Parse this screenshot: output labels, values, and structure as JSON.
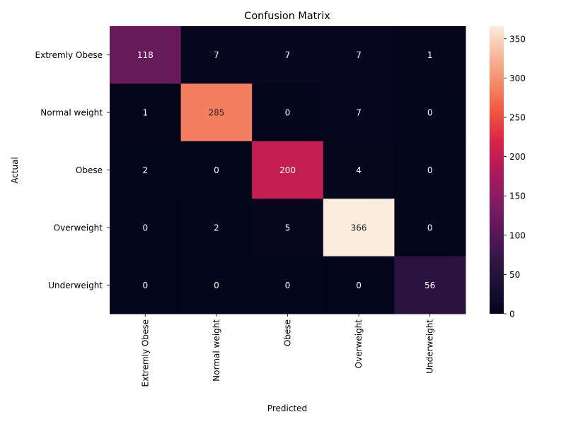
{
  "chart_data": {
    "type": "heatmap",
    "title": "Confusion Matrix",
    "xlabel": "Predicted",
    "ylabel": "Actual",
    "x_categories": [
      "Extremly Obese",
      "Normal weight",
      "Obese",
      "Overweight",
      "Underweight"
    ],
    "y_categories": [
      "Extremly Obese",
      "Normal weight",
      "Obese",
      "Overweight",
      "Underweight"
    ],
    "values": [
      [
        118,
        7,
        7,
        7,
        1
      ],
      [
        1,
        285,
        0,
        7,
        0
      ],
      [
        2,
        0,
        200,
        4,
        0
      ],
      [
        0,
        2,
        5,
        366,
        0
      ],
      [
        0,
        0,
        0,
        0,
        56
      ]
    ],
    "colorbar": {
      "range": [
        0,
        366
      ],
      "ticks": [
        0,
        50,
        100,
        150,
        200,
        250,
        300,
        350
      ],
      "colormap": "rocket"
    }
  }
}
